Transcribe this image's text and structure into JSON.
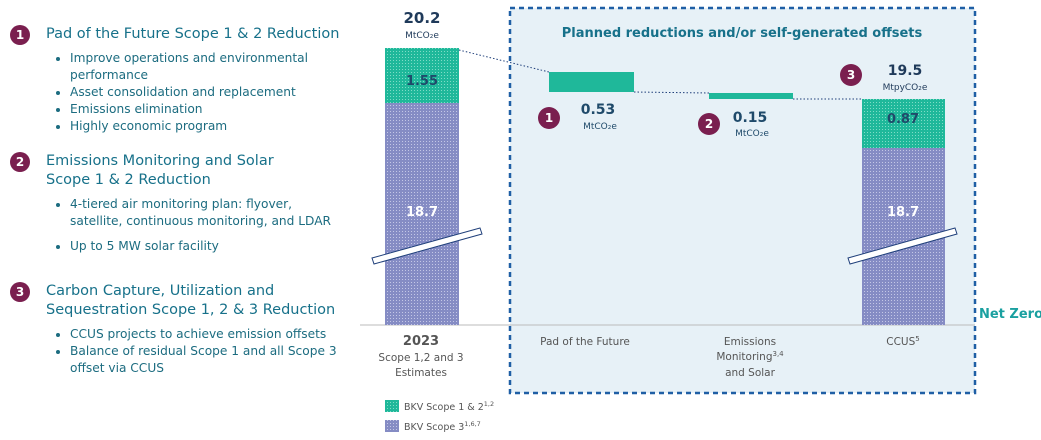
{
  "left_panel": {
    "items": [
      {
        "number": "1",
        "title_lines": [
          "Pad of the Future Scope 1 & 2 Reduction"
        ],
        "bullets": [
          "Improve operations and environmental performance",
          "Asset consolidation and replacement",
          "Emissions elimination",
          "Highly economic program"
        ]
      },
      {
        "number": "2",
        "title_lines": [
          "Emissions Monitoring and Solar",
          "Scope 1 & 2 Reduction"
        ],
        "bullets": [
          "4-tiered air monitoring plan: flyover, satellite, continuous monitoring, and LDAR",
          "Up to 5 MW solar facility"
        ]
      },
      {
        "number": "3",
        "title_lines": [
          "Carbon Capture, Utilization and",
          "Sequestration Scope 1, 2 & 3 Reduction"
        ],
        "bullets": [
          "CCUS projects to achieve emission offsets",
          "Balance of residual Scope 1 and all Scope 3 offset via CCUS"
        ]
      }
    ]
  },
  "chart": {
    "box_title": "Planned reductions and/or self-generated offsets",
    "start": {
      "total": "20.2",
      "unit": "MtCO₂e",
      "scope12": "1.55",
      "scope3": "18.7",
      "label_lines": [
        "2023",
        "Scope 1,2 and 3",
        "Estimates"
      ]
    },
    "steps": [
      {
        "number": "1",
        "value": "0.53",
        "unit": "MtCO₂e",
        "label": "Pad of the Future"
      },
      {
        "number": "2",
        "value": "0.15",
        "unit": "MtCO₂e",
        "label_lines": [
          "Emissions",
          "Monitoring",
          "and Solar"
        ],
        "label_sup": "3,4"
      }
    ],
    "end": {
      "number": "3",
      "total": "19.5",
      "unit": "MtpyCO₂e",
      "scope12": "0.87",
      "scope3": "18.7",
      "label": "CCUS",
      "label_sup": "5"
    },
    "net_zero": "Net Zero",
    "legend": [
      {
        "name": "BKV Scope 1 & 2",
        "sup": "1,2"
      },
      {
        "name": "BKV Scope 3",
        "sup": "1,6,7"
      }
    ]
  }
}
